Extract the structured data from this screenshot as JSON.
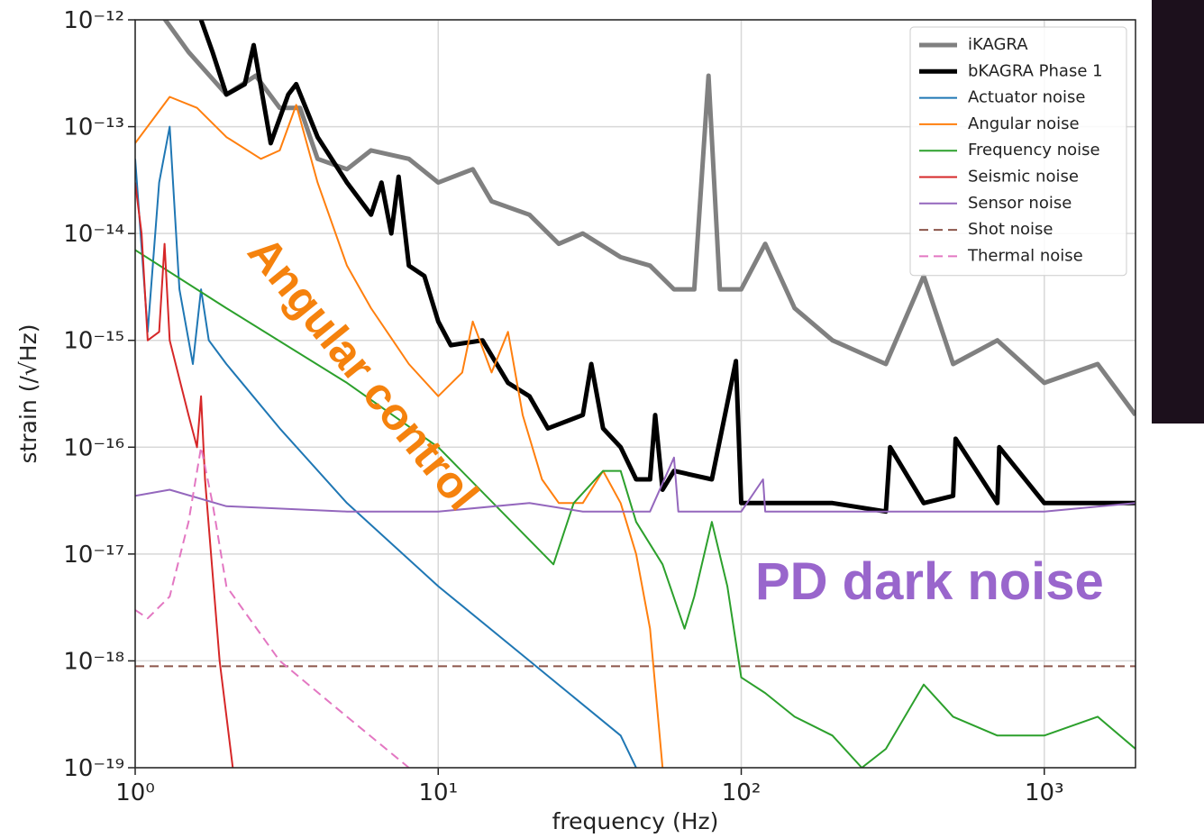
{
  "chart_data": {
    "type": "line",
    "xlabel": "frequency (Hz)",
    "ylabel": "strain (/√Hz)",
    "xscale": "log",
    "yscale": "log",
    "grid": true,
    "legend": "upper right",
    "xlim": [
      1,
      2000
    ],
    "ylim": [
      1e-19,
      1e-12
    ],
    "xticks": [
      {
        "value": 1,
        "label": "10⁰"
      },
      {
        "value": 10,
        "label": "10¹"
      },
      {
        "value": 100,
        "label": "10²"
      },
      {
        "value": 1000,
        "label": "10³"
      }
    ],
    "yticks": [
      {
        "value": 1e-19,
        "label": "10⁻¹⁹"
      },
      {
        "value": 1e-18,
        "label": "10⁻¹⁸"
      },
      {
        "value": 1e-17,
        "label": "10⁻¹⁷"
      },
      {
        "value": 1e-16,
        "label": "10⁻¹⁶"
      },
      {
        "value": 1e-15,
        "label": "10⁻¹⁵"
      },
      {
        "value": 1e-14,
        "label": "10⁻¹⁴"
      },
      {
        "value": 1e-13,
        "label": "10⁻¹³"
      },
      {
        "value": 1e-12,
        "label": "10⁻¹²"
      }
    ],
    "series": [
      {
        "name": "iKAGRA",
        "color": "#808080",
        "linewidth": 5,
        "dash": "solid",
        "x": [
          1.2,
          1.5,
          2,
          2.5,
          3,
          3.5,
          4,
          5,
          6,
          8,
          10,
          13,
          15,
          20,
          25,
          30,
          40,
          50,
          60,
          70,
          78,
          85,
          100,
          120,
          150,
          200,
          300,
          400,
          500,
          700,
          1000,
          1500,
          2000
        ],
        "values": [
          1.2e-12,
          5e-13,
          2e-13,
          3e-13,
          1.5e-13,
          1.5e-13,
          5e-14,
          4e-14,
          6e-14,
          5e-14,
          3e-14,
          4e-14,
          2e-14,
          1.5e-14,
          8e-15,
          1e-14,
          6e-15,
          5e-15,
          3e-15,
          3e-15,
          3e-13,
          3e-15,
          3e-15,
          8e-15,
          2e-15,
          1e-15,
          6e-16,
          4e-15,
          6e-16,
          1e-15,
          4e-16,
          6e-16,
          2e-16
        ]
      },
      {
        "name": "bKAGRA Phase 1",
        "color": "#000000",
        "linewidth": 5,
        "dash": "solid",
        "x": [
          1.65,
          1.8,
          2,
          2.3,
          2.46,
          2.8,
          3.2,
          3.4,
          4,
          5,
          6,
          6.5,
          7,
          7.4,
          8,
          9,
          10,
          11,
          14,
          17,
          20,
          23,
          30,
          32,
          35,
          40,
          45,
          50,
          52,
          55,
          60,
          80,
          96,
          100,
          200,
          300,
          310,
          400,
          500,
          510,
          700,
          710,
          1000,
          2000
        ],
        "values": [
          1e-12,
          5e-13,
          2e-13,
          2.5e-13,
          5.8e-13,
          7e-14,
          2e-13,
          2.5e-13,
          8e-14,
          3e-14,
          1.5e-14,
          3e-14,
          1e-14,
          3.4e-14,
          5e-15,
          4e-15,
          1.5e-15,
          9e-16,
          1e-15,
          4e-16,
          3e-16,
          1.5e-16,
          2e-16,
          6e-16,
          1.5e-16,
          1e-16,
          5e-17,
          5e-17,
          2e-16,
          4e-17,
          6e-17,
          5e-17,
          6.4e-16,
          3e-17,
          3e-17,
          2.5e-17,
          1e-16,
          3e-17,
          3.5e-17,
          1.2e-16,
          3e-17,
          1e-16,
          3e-17,
          3e-17
        ]
      },
      {
        "name": "Actuator noise",
        "color": "#1f77b4",
        "linewidth": 2,
        "dash": "solid",
        "x": [
          1,
          1.1,
          1.2,
          1.3,
          1.4,
          1.55,
          1.65,
          1.75,
          2,
          3,
          5,
          10,
          20,
          40,
          45
        ],
        "values": [
          5e-14,
          1.2e-15,
          3e-14,
          1e-13,
          3e-15,
          6e-16,
          3e-15,
          1e-15,
          6e-16,
          1.5e-16,
          3e-17,
          5e-18,
          1e-18,
          2e-19,
          1e-19
        ]
      },
      {
        "name": "Angular noise",
        "color": "#ff7f0e",
        "linewidth": 2,
        "dash": "solid",
        "x": [
          1,
          1.3,
          1.6,
          2,
          2.6,
          3,
          3.4,
          4,
          5,
          6,
          8,
          10,
          12,
          13,
          15,
          17,
          19,
          22,
          25,
          30,
          35,
          40,
          45,
          50,
          55
        ],
        "values": [
          7e-14,
          1.9e-13,
          1.5e-13,
          8e-14,
          5e-14,
          6e-14,
          1.6e-13,
          3e-14,
          5e-15,
          2e-15,
          6e-16,
          3e-16,
          5e-16,
          1.5e-15,
          5e-16,
          1.2e-15,
          2e-16,
          5e-17,
          3e-17,
          3e-17,
          6e-17,
          3e-17,
          1e-17,
          2e-18,
          1e-19
        ]
      },
      {
        "name": "Frequency noise",
        "color": "#2ca02c",
        "linewidth": 2,
        "dash": "solid",
        "x": [
          1,
          2,
          5,
          10,
          24,
          28,
          35,
          40,
          45,
          55,
          65,
          70,
          80,
          90,
          100,
          120,
          150,
          200,
          250,
          300,
          400,
          500,
          700,
          1000,
          1500,
          2000
        ],
        "values": [
          7e-15,
          2e-15,
          4e-16,
          1e-16,
          8e-18,
          3e-17,
          6e-17,
          6e-17,
          2e-17,
          8e-18,
          2e-18,
          4e-18,
          2e-17,
          5e-18,
          7e-19,
          5e-19,
          3e-19,
          2e-19,
          1e-19,
          1.5e-19,
          6e-19,
          3e-19,
          2e-19,
          2e-19,
          3e-19,
          1.5e-19
        ]
      },
      {
        "name": "Seismic noise",
        "color": "#d62728",
        "linewidth": 2,
        "dash": "solid",
        "x": [
          1,
          1.05,
          1.1,
          1.2,
          1.25,
          1.3,
          1.5,
          1.6,
          1.65,
          1.7,
          1.9,
          2.1
        ],
        "values": [
          3e-14,
          1e-14,
          1e-15,
          1.2e-15,
          8e-15,
          1e-15,
          2e-16,
          1e-16,
          3e-16,
          5e-17,
          1e-18,
          1e-19
        ]
      },
      {
        "name": "Sensor noise",
        "color": "#9467bd",
        "linewidth": 2,
        "dash": "solid",
        "x": [
          1,
          1.3,
          2,
          5,
          10,
          20,
          30,
          50,
          60,
          62,
          100,
          118,
          120,
          200,
          500,
          1000,
          2000
        ],
        "values": [
          3.5e-17,
          4e-17,
          2.8e-17,
          2.5e-17,
          2.5e-17,
          3e-17,
          2.5e-17,
          2.5e-17,
          8e-17,
          2.5e-17,
          2.5e-17,
          5e-17,
          2.5e-17,
          2.5e-17,
          2.5e-17,
          2.5e-17,
          3e-17
        ]
      },
      {
        "name": "Shot noise",
        "color": "#8c564b",
        "linewidth": 2,
        "dash": "dashed",
        "x": [
          1,
          2000
        ],
        "values": [
          8.9e-19,
          8.9e-19
        ]
      },
      {
        "name": "Thermal noise",
        "color": "#e377c2",
        "linewidth": 2,
        "dash": "dashed",
        "x": [
          1,
          1.1,
          1.3,
          1.5,
          1.65,
          1.8,
          2,
          3,
          5,
          8
        ],
        "values": [
          3e-18,
          2.5e-18,
          4e-18,
          2e-17,
          1e-16,
          3e-17,
          5e-18,
          1e-18,
          3e-19,
          1e-19
        ]
      }
    ],
    "annotations": [
      {
        "text": "Angular control",
        "color": "#f5820d"
      },
      {
        "text": "PD dark noise",
        "color": "#9966cc"
      }
    ]
  }
}
